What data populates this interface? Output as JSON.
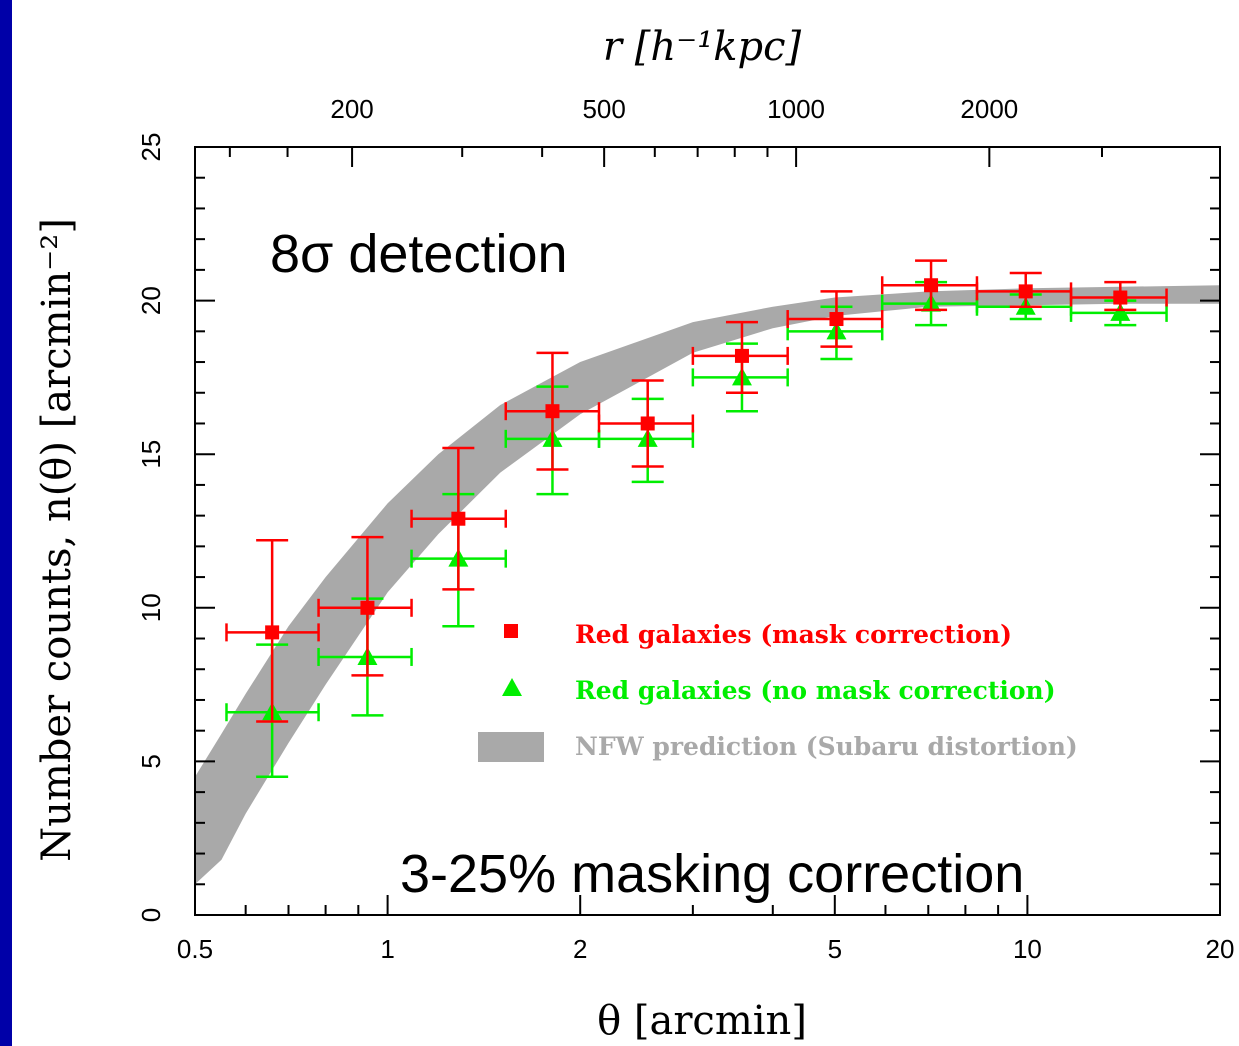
{
  "chart_data": {
    "type": "scatter",
    "x_scale": "log",
    "y_scale": "linear",
    "xlim": [
      0.5,
      20
    ],
    "ylim": [
      0,
      25
    ],
    "grid": false,
    "xlabel": "θ [arcmin]",
    "ylabel": "Number counts, n(θ) [arcmin⁻²]",
    "top_axis_label": "r [h⁻¹kpc]",
    "x_ticks": [
      0.5,
      1,
      2,
      5,
      10,
      20
    ],
    "x_tick_labels": [
      "0.5",
      "1",
      "2",
      "5",
      "10",
      "20"
    ],
    "y_ticks": [
      0,
      5,
      10,
      15,
      20,
      25
    ],
    "y_tick_labels": [
      "0",
      "5",
      "10",
      "15",
      "20",
      "25"
    ],
    "top_ticks": [
      {
        "label": "200",
        "theta": 0.88
      },
      {
        "label": "500",
        "theta": 2.18
      },
      {
        "label": "1000",
        "theta": 4.35
      },
      {
        "label": "2000",
        "theta": 8.72
      }
    ],
    "annotations": [
      "8σ detection",
      "3-25% masking correction"
    ],
    "legend_position": "lower-right",
    "series": [
      {
        "name": "Red galaxies (mask correction)",
        "color": "#ff0000",
        "marker": "square",
        "points": [
          {
            "x": 0.66,
            "y": 9.2,
            "xlo": 0.56,
            "xhi": 0.78,
            "ylo": 6.3,
            "yhi": 12.2
          },
          {
            "x": 0.93,
            "y": 10.0,
            "xlo": 0.78,
            "xhi": 1.09,
            "ylo": 7.8,
            "yhi": 12.3
          },
          {
            "x": 1.29,
            "y": 12.9,
            "xlo": 1.09,
            "xhi": 1.53,
            "ylo": 10.6,
            "yhi": 15.2
          },
          {
            "x": 1.81,
            "y": 16.4,
            "xlo": 1.53,
            "xhi": 2.14,
            "ylo": 14.5,
            "yhi": 18.3
          },
          {
            "x": 2.55,
            "y": 16.0,
            "xlo": 2.14,
            "xhi": 3.0,
            "ylo": 14.6,
            "yhi": 17.4
          },
          {
            "x": 3.58,
            "y": 18.2,
            "xlo": 3.0,
            "xhi": 4.22,
            "ylo": 17.0,
            "yhi": 19.3
          },
          {
            "x": 5.03,
            "y": 19.4,
            "xlo": 4.22,
            "xhi": 5.93,
            "ylo": 18.5,
            "yhi": 20.3
          },
          {
            "x": 7.07,
            "y": 20.5,
            "xlo": 5.93,
            "xhi": 8.34,
            "ylo": 19.7,
            "yhi": 21.3
          },
          {
            "x": 9.94,
            "y": 20.3,
            "xlo": 8.34,
            "xhi": 11.7,
            "ylo": 19.8,
            "yhi": 20.9
          },
          {
            "x": 13.97,
            "y": 20.1,
            "xlo": 11.7,
            "xhi": 16.5,
            "ylo": 19.7,
            "yhi": 20.6
          }
        ]
      },
      {
        "name": "Red galaxies (no mask correction)",
        "color": "#00ee00",
        "marker": "triangle",
        "points": [
          {
            "x": 0.66,
            "y": 6.6,
            "xlo": 0.56,
            "xhi": 0.78,
            "ylo": 4.5,
            "yhi": 8.8
          },
          {
            "x": 0.93,
            "y": 8.4,
            "xlo": 0.78,
            "xhi": 1.09,
            "ylo": 6.5,
            "yhi": 10.3
          },
          {
            "x": 1.29,
            "y": 11.6,
            "xlo": 1.09,
            "xhi": 1.53,
            "ylo": 9.4,
            "yhi": 13.7
          },
          {
            "x": 1.81,
            "y": 15.5,
            "xlo": 1.53,
            "xhi": 2.14,
            "ylo": 13.7,
            "yhi": 17.2
          },
          {
            "x": 2.55,
            "y": 15.5,
            "xlo": 2.14,
            "xhi": 3.0,
            "ylo": 14.1,
            "yhi": 16.8
          },
          {
            "x": 3.58,
            "y": 17.5,
            "xlo": 3.0,
            "xhi": 4.22,
            "ylo": 16.4,
            "yhi": 18.6
          },
          {
            "x": 5.03,
            "y": 19.0,
            "xlo": 4.22,
            "xhi": 5.93,
            "ylo": 18.1,
            "yhi": 19.8
          },
          {
            "x": 7.07,
            "y": 19.9,
            "xlo": 5.93,
            "xhi": 8.34,
            "ylo": 19.2,
            "yhi": 20.6
          },
          {
            "x": 9.94,
            "y": 19.8,
            "xlo": 8.34,
            "xhi": 11.7,
            "ylo": 19.4,
            "yhi": 20.2
          },
          {
            "x": 13.97,
            "y": 19.6,
            "xlo": 11.7,
            "xhi": 16.5,
            "ylo": 19.2,
            "yhi": 20.0
          }
        ]
      }
    ],
    "band": {
      "name": "NFW prediction (Subaru distortion)",
      "color": "#a9a9a9",
      "x": [
        0.5,
        0.55,
        0.6,
        0.7,
        0.8,
        1.0,
        1.2,
        1.5,
        2.0,
        3.0,
        4.0,
        5.0,
        7.0,
        10.0,
        14.0,
        20.0
      ],
      "lower": [
        1.0,
        1.8,
        3.3,
        5.6,
        7.5,
        10.5,
        12.4,
        14.4,
        16.3,
        18.3,
        19.1,
        19.5,
        19.8,
        19.85,
        19.9,
        19.9
      ],
      "upper": [
        4.5,
        5.9,
        7.2,
        9.4,
        11.0,
        13.4,
        15.0,
        16.6,
        18.0,
        19.3,
        19.8,
        20.1,
        20.3,
        20.4,
        20.45,
        20.5
      ]
    }
  }
}
